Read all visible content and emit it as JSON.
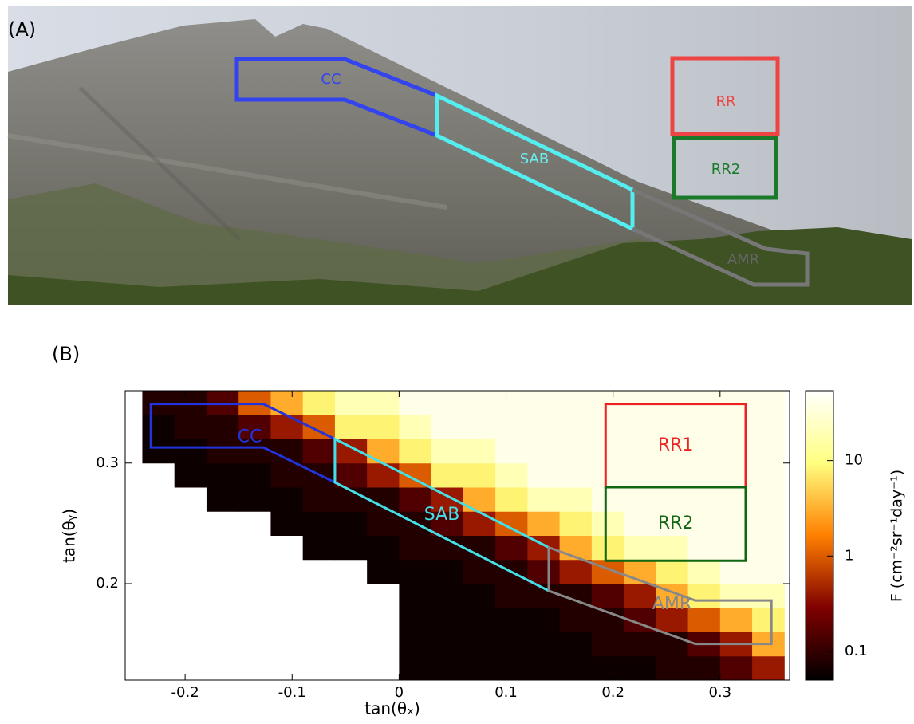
{
  "panel_a": {
    "label": "(A)",
    "cc": "CC",
    "sab": "SAB",
    "amr": "AMR",
    "rr": "RR",
    "rr2": "RR2"
  },
  "panel_b": {
    "label": "(B)"
  },
  "chart_data": {
    "type": "heatmap",
    "xlabel": "tan(θₓ)",
    "ylabel": "tan(θᵧ)",
    "xlim": [
      -0.256,
      0.365
    ],
    "ylim": [
      0.12,
      0.36
    ],
    "xticks": [
      -0.2,
      -0.1,
      0,
      0.1,
      0.2,
      0.3
    ],
    "yticks": [
      0.2,
      0.3
    ],
    "x_edges": [
      -0.24,
      -0.21,
      -0.18,
      -0.15,
      -0.12,
      -0.09,
      -0.06,
      -0.03,
      0,
      0.03,
      0.06,
      0.09,
      0.12,
      0.15,
      0.18,
      0.21,
      0.24,
      0.27,
      0.3,
      0.33,
      0.36
    ],
    "y_edges": [
      0.12,
      0.14,
      0.16,
      0.18,
      0.2,
      0.22,
      0.24,
      0.26,
      0.28,
      0.3,
      0.32,
      0.34,
      0.36
    ],
    "values": [
      [
        null,
        null,
        null,
        null,
        null,
        null,
        null,
        null,
        0.06,
        0.06,
        0.06,
        0.06,
        0.06,
        0.06,
        0.06,
        0.06,
        0.08,
        0.08,
        0.15,
        0.4
      ],
      [
        null,
        null,
        null,
        null,
        null,
        null,
        null,
        null,
        0.06,
        0.06,
        0.06,
        0.06,
        0.06,
        0.06,
        0.08,
        0.08,
        0.08,
        0.15,
        0.4,
        3
      ],
      [
        null,
        null,
        null,
        null,
        null,
        null,
        null,
        null,
        0.06,
        0.06,
        0.06,
        0.06,
        0.06,
        0.08,
        0.08,
        0.15,
        0.4,
        1,
        3,
        8
      ],
      [
        null,
        null,
        null,
        null,
        null,
        null,
        null,
        null,
        0.06,
        0.06,
        0.06,
        0.08,
        0.08,
        0.08,
        0.15,
        0.4,
        3,
        8,
        20,
        20
      ],
      [
        null,
        null,
        null,
        null,
        null,
        null,
        null,
        0.06,
        0.06,
        0.06,
        0.08,
        0.08,
        0.15,
        0.4,
        1,
        3,
        8,
        20,
        40,
        40
      ],
      [
        null,
        null,
        null,
        null,
        null,
        0.06,
        0.06,
        0.06,
        0.08,
        0.08,
        0.08,
        0.15,
        0.4,
        3,
        8,
        20,
        20,
        40,
        40,
        40
      ],
      [
        null,
        null,
        null,
        null,
        0.06,
        0.06,
        0.06,
        0.08,
        0.08,
        0.15,
        0.4,
        1,
        3,
        8,
        20,
        40,
        40,
        40,
        40,
        40
      ],
      [
        null,
        null,
        0.06,
        0.06,
        0.06,
        0.08,
        0.08,
        0.08,
        0.15,
        0.4,
        3,
        8,
        20,
        20,
        40,
        40,
        40,
        40,
        40,
        40
      ],
      [
        null,
        0.06,
        0.06,
        0.06,
        0.08,
        0.08,
        0.15,
        0.4,
        1,
        8,
        8,
        20,
        40,
        40,
        40,
        40,
        40,
        40,
        40,
        40
      ],
      [
        0.06,
        0.06,
        0.08,
        0.08,
        0.08,
        0.15,
        0.4,
        3,
        8,
        20,
        20,
        40,
        40,
        40,
        40,
        40,
        40,
        40,
        40,
        40
      ],
      [
        0.06,
        0.08,
        0.08,
        0.15,
        0.4,
        1,
        8,
        8,
        20,
        40,
        40,
        40,
        40,
        40,
        40,
        40,
        40,
        40,
        40,
        40
      ],
      [
        0.08,
        0.08,
        0.15,
        1,
        3,
        8,
        20,
        20,
        40,
        40,
        40,
        40,
        40,
        40,
        40,
        40,
        40,
        40,
        40,
        40
      ]
    ],
    "log_color": true,
    "clim": [
      0.05,
      54
    ],
    "colorscale": "afmhot",
    "colorbar_label": "F (cm⁻²sr⁻¹day⁻¹)",
    "colorbar_ticks": [
      0.1,
      1,
      10
    ],
    "regions": [
      {
        "label": "CC",
        "color": "#2233dd",
        "points": [
          [
            -0.232,
            0.349
          ],
          [
            -0.127,
            0.349
          ],
          [
            -0.06,
            0.32
          ],
          [
            -0.06,
            0.284
          ],
          [
            -0.127,
            0.313
          ],
          [
            -0.232,
            0.313
          ]
        ]
      },
      {
        "label": "SAB",
        "color": "#44e0e8",
        "points": [
          [
            -0.06,
            0.32
          ],
          [
            0.14,
            0.23
          ],
          [
            0.14,
            0.194
          ],
          [
            -0.06,
            0.284
          ]
        ]
      },
      {
        "label": "AMR",
        "color": "#888888",
        "points": [
          [
            0.14,
            0.23
          ],
          [
            0.277,
            0.186
          ],
          [
            0.348,
            0.186
          ],
          [
            0.348,
            0.15
          ],
          [
            0.277,
            0.15
          ],
          [
            0.14,
            0.194
          ]
        ]
      },
      {
        "label": "RR1",
        "color": "#ee2222",
        "points": [
          [
            0.193,
            0.349
          ],
          [
            0.324,
            0.349
          ],
          [
            0.324,
            0.28
          ],
          [
            0.193,
            0.28
          ]
        ]
      },
      {
        "label": "RR2",
        "color": "#116611",
        "points": [
          [
            0.193,
            0.28
          ],
          [
            0.324,
            0.28
          ],
          [
            0.324,
            0.219
          ],
          [
            0.193,
            0.219
          ]
        ]
      }
    ]
  }
}
